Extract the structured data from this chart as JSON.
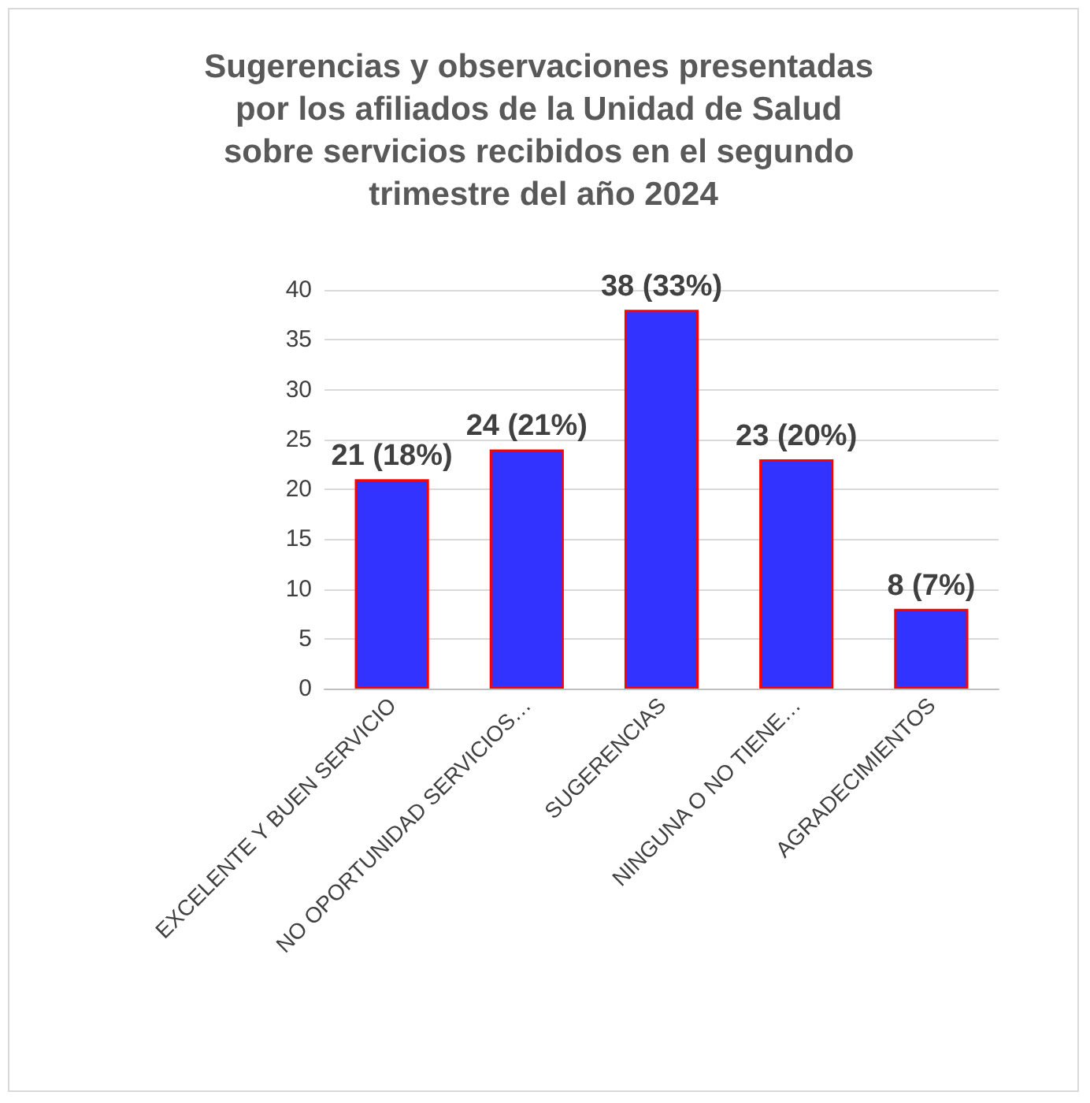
{
  "chart_data": {
    "type": "bar",
    "title": "Sugerencias y observaciones presentadas por los afiliados de la Unidad de Salud sobre servicios recibidos en el segundo trimestre del año 2024",
    "categories": [
      "EXCELENTE Y BUEN SERVICIO",
      "NO OPORTUNIDAD SERVICIOS…",
      "SUGERENCIAS",
      "NINGUNA O NO TIENE…",
      "AGRADECIMIENTOS"
    ],
    "values": [
      21,
      24,
      38,
      23,
      8
    ],
    "value_labels": [
      "21 (18%)",
      "24 (21%)",
      "38 (33%)",
      "23 (20%)",
      "8 (7%)"
    ],
    "color": "#3333ff",
    "ylim": [
      0,
      40
    ],
    "yticks": [
      0,
      5,
      10,
      15,
      20,
      25,
      30,
      35,
      40
    ],
    "grid": "y"
  }
}
